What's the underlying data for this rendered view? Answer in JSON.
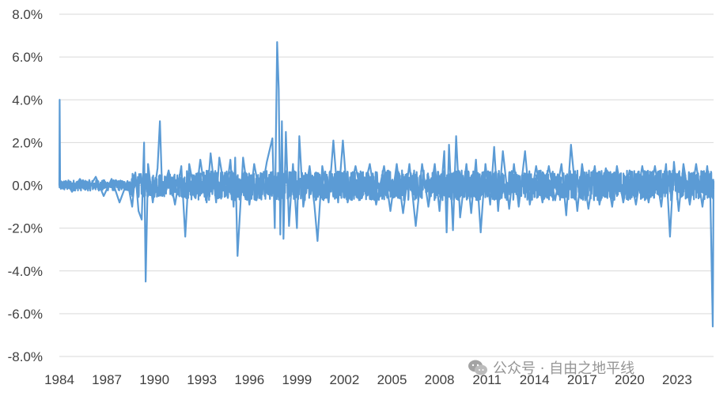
{
  "chart_data": {
    "type": "line",
    "title": "",
    "xlabel": "",
    "ylabel": "",
    "x_range": [
      1984,
      2025.3
    ],
    "ylim": [
      -8.0,
      8.0
    ],
    "y_ticks": [
      8,
      6,
      4,
      2,
      0,
      -2,
      -4,
      -6,
      -8
    ],
    "y_tick_labels": [
      "8.0%",
      "6.0%",
      "4.0%",
      "2.0%",
      "0.0%",
      "-2.0%",
      "-4.0%",
      "-6.0%",
      "-8.0%"
    ],
    "x_tick_labels": [
      "1984",
      "1987",
      "1990",
      "1993",
      "1996",
      "1999",
      "2002",
      "2005",
      "2008",
      "2011",
      "2014",
      "2017",
      "2020",
      "2023"
    ],
    "x_ticks": [
      1984,
      1987,
      1990,
      1993,
      1996,
      1999,
      2002,
      2005,
      2008,
      2011,
      2014,
      2017,
      2020,
      2023
    ],
    "grid": "horizontal",
    "legend": "none",
    "series_color": "#5b9bd5",
    "series": [
      {
        "values_note_points": [
          [
            1984.0,
            0.0
          ],
          [
            1984.02,
            4.0
          ],
          [
            1984.05,
            0.0
          ],
          [
            1984.4,
            0.2
          ],
          [
            1984.8,
            -0.3
          ],
          [
            1985.3,
            0.3
          ],
          [
            1985.8,
            -0.2
          ],
          [
            1986.3,
            0.4
          ],
          [
            1986.8,
            -0.5
          ],
          [
            1987.3,
            0.3
          ],
          [
            1987.8,
            -0.8
          ],
          [
            1988.3,
            0.2
          ],
          [
            1988.6,
            -1.0
          ],
          [
            1988.8,
            0.6
          ],
          [
            1989.0,
            -1.2
          ],
          [
            1989.2,
            -1.6
          ],
          [
            1989.35,
            2.0
          ],
          [
            1989.45,
            -4.5
          ],
          [
            1989.6,
            1.0
          ],
          [
            1989.9,
            -0.8
          ],
          [
            1990.2,
            0.8
          ],
          [
            1990.35,
            3.0
          ],
          [
            1990.5,
            -0.5
          ],
          [
            1990.9,
            0.7
          ],
          [
            1991.3,
            -0.9
          ],
          [
            1991.7,
            0.9
          ],
          [
            1991.95,
            -2.4
          ],
          [
            1992.2,
            1.0
          ],
          [
            1992.6,
            -0.6
          ],
          [
            1992.9,
            1.2
          ],
          [
            1993.3,
            -0.8
          ],
          [
            1993.55,
            1.5
          ],
          [
            1993.9,
            -0.8
          ],
          [
            1994.1,
            1.3
          ],
          [
            1994.5,
            -0.5
          ],
          [
            1994.8,
            1.2
          ],
          [
            1995.0,
            -1.0
          ],
          [
            1995.1,
            1.3
          ],
          [
            1995.25,
            -3.3
          ],
          [
            1995.6,
            1.3
          ],
          [
            1996.0,
            -0.9
          ],
          [
            1996.3,
            1.0
          ],
          [
            1996.7,
            -0.6
          ],
          [
            1997.1,
            1.1
          ],
          [
            1997.45,
            2.2
          ],
          [
            1997.6,
            -2.0
          ],
          [
            1997.75,
            6.7
          ],
          [
            1997.85,
            4.5
          ],
          [
            1997.95,
            -2.3
          ],
          [
            1998.05,
            3.0
          ],
          [
            1998.15,
            -2.5
          ],
          [
            1998.3,
            2.5
          ],
          [
            1998.5,
            -1.9
          ],
          [
            1998.75,
            1.0
          ],
          [
            1999.0,
            -2.0
          ],
          [
            1999.15,
            2.3
          ],
          [
            1999.4,
            -1.0
          ],
          [
            1999.8,
            0.9
          ],
          [
            2000.1,
            -0.9
          ],
          [
            2000.3,
            -2.6
          ],
          [
            2000.6,
            0.9
          ],
          [
            2001.0,
            -0.8
          ],
          [
            2001.3,
            2.1
          ],
          [
            2001.6,
            -0.8
          ],
          [
            2001.9,
            2.1
          ],
          [
            2002.2,
            -0.8
          ],
          [
            2002.7,
            0.9
          ],
          [
            2003.1,
            -0.6
          ],
          [
            2003.6,
            1.0
          ],
          [
            2004.0,
            -0.9
          ],
          [
            2004.5,
            0.9
          ],
          [
            2004.9,
            -1.2
          ],
          [
            2005.3,
            1.0
          ],
          [
            2005.7,
            -1.3
          ],
          [
            2006.1,
            1.0
          ],
          [
            2006.5,
            -1.9
          ],
          [
            2006.9,
            1.0
          ],
          [
            2007.3,
            -1.0
          ],
          [
            2007.7,
            1.0
          ],
          [
            2008.0,
            -1.2
          ],
          [
            2008.3,
            1.6
          ],
          [
            2008.45,
            -2.2
          ],
          [
            2008.6,
            1.9
          ],
          [
            2008.85,
            -2.1
          ],
          [
            2009.05,
            2.3
          ],
          [
            2009.3,
            -1.5
          ],
          [
            2009.7,
            1.0
          ],
          [
            2010.0,
            -1.3
          ],
          [
            2010.3,
            1.2
          ],
          [
            2010.6,
            -2.2
          ],
          [
            2010.9,
            1.0
          ],
          [
            2011.2,
            -0.9
          ],
          [
            2011.45,
            1.8
          ],
          [
            2011.7,
            -1.2
          ],
          [
            2012.0,
            1.6
          ],
          [
            2012.4,
            -1.1
          ],
          [
            2012.7,
            1.0
          ],
          [
            2013.0,
            -1.0
          ],
          [
            2013.4,
            1.6
          ],
          [
            2013.7,
            -0.9
          ],
          [
            2014.1,
            0.9
          ],
          [
            2014.5,
            -0.8
          ],
          [
            2014.9,
            0.9
          ],
          [
            2015.3,
            -0.7
          ],
          [
            2015.7,
            1.0
          ],
          [
            2016.0,
            -1.4
          ],
          [
            2016.3,
            1.9
          ],
          [
            2016.7,
            -1.2
          ],
          [
            2017.0,
            1.0
          ],
          [
            2017.4,
            -1.1
          ],
          [
            2017.8,
            0.9
          ],
          [
            2018.1,
            -0.9
          ],
          [
            2018.5,
            0.8
          ],
          [
            2018.9,
            -1.0
          ],
          [
            2019.2,
            0.9
          ],
          [
            2019.6,
            -0.8
          ],
          [
            2020.0,
            0.7
          ],
          [
            2020.4,
            -0.9
          ],
          [
            2020.8,
            0.9
          ],
          [
            2021.2,
            -0.8
          ],
          [
            2021.6,
            0.9
          ],
          [
            2022.0,
            -1.0
          ],
          [
            2022.3,
            1.0
          ],
          [
            2022.55,
            -2.4
          ],
          [
            2022.8,
            1.1
          ],
          [
            2023.1,
            -1.2
          ],
          [
            2023.4,
            1.0
          ],
          [
            2023.8,
            -0.9
          ],
          [
            2024.2,
            1.0
          ],
          [
            2024.6,
            -1.0
          ],
          [
            2024.9,
            0.9
          ],
          [
            2025.1,
            -0.6
          ],
          [
            2025.25,
            -6.6
          ],
          [
            2025.3,
            0.2
          ]
        ]
      }
    ]
  },
  "watermark": {
    "text": "公众号 · 自由之地平线"
  }
}
